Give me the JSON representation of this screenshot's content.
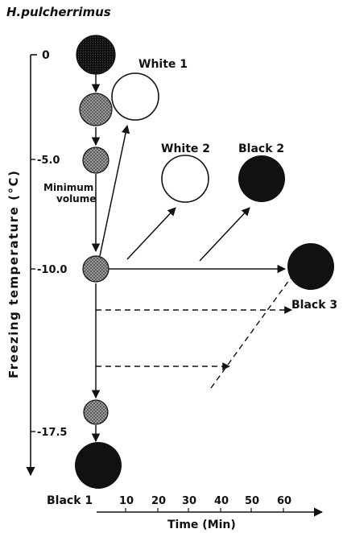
{
  "title": "H.pulcherrimus",
  "y_axis": {
    "label": "Freezing temperature (°C)",
    "ticks": [
      "0",
      "-5.0",
      "-10.0",
      "-17.5"
    ]
  },
  "x_axis": {
    "label": "Time (Min)",
    "ticks": [
      "10",
      "20",
      "30",
      "40",
      "50",
      "60"
    ]
  },
  "annotations": {
    "minimum_volume": [
      "Minimum",
      "volume"
    ]
  },
  "outcomes": {
    "white1": "White 1",
    "white2": "White 2",
    "black1": "Black 1",
    "black2": "Black 2",
    "black3": "Black 3"
  },
  "colors": {
    "ink": "#111111",
    "stipple": "#7a7a7a",
    "background": "#ffffff"
  }
}
